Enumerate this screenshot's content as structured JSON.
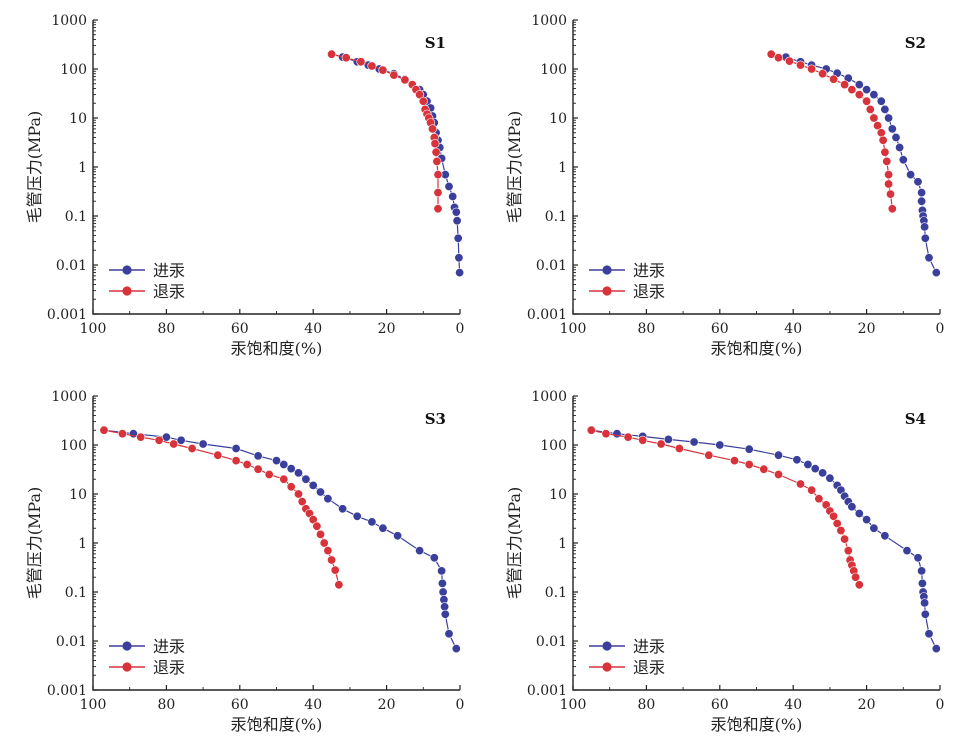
{
  "colors": {
    "intrusion": "#3b3f9c",
    "withdrawal": "#d8323a",
    "axis": "#222222"
  },
  "chart_data": [
    {
      "type": "scatter",
      "panel_label": "S1",
      "xlabel": "汞饱和度(%)",
      "ylabel": "毛管压力(MPa)",
      "xlim": [
        100,
        0
      ],
      "ylim": [
        0.001,
        1000
      ],
      "yscale": "log",
      "x_ticks": [
        "100",
        "80",
        "60",
        "40",
        "20",
        "0"
      ],
      "y_ticks": [
        "0.001",
        "0.01",
        "0.1",
        "1",
        "10",
        "100",
        "1000"
      ],
      "legend_position": "bottom-left",
      "series": [
        {
          "name": "进汞",
          "color": "#3b3f9c",
          "x": [
            35,
            32,
            28,
            25,
            22,
            18,
            15,
            13,
            11,
            10,
            9,
            8,
            7.5,
            7,
            6.5,
            6,
            5.5,
            5,
            4,
            3,
            2,
            1.5,
            1,
            0.8,
            0.5,
            0.3,
            0.1
          ],
          "y": [
            200,
            175,
            140,
            120,
            100,
            80,
            62,
            48,
            38,
            30,
            22,
            16,
            11,
            8,
            5,
            3.5,
            2.5,
            1.5,
            0.7,
            0.4,
            0.25,
            0.15,
            0.12,
            0.08,
            0.035,
            0.014,
            0.007
          ]
        },
        {
          "name": "退汞",
          "color": "#d8323a",
          "x": [
            35,
            31,
            27,
            24,
            21,
            18,
            15,
            13,
            12,
            11,
            10,
            9.5,
            9,
            8.5,
            8,
            7.5,
            7,
            6.8,
            6.5,
            6.3,
            6,
            6,
            6
          ],
          "y": [
            200,
            170,
            140,
            115,
            95,
            75,
            60,
            48,
            38,
            30,
            22,
            15,
            12,
            10,
            8,
            6,
            4,
            3,
            2,
            1.3,
            0.7,
            0.3,
            0.14
          ]
        }
      ]
    },
    {
      "type": "scatter",
      "panel_label": "S2",
      "xlabel": "汞饱和度(%)",
      "ylabel": "毛管压力(MPa)",
      "xlim": [
        100,
        0
      ],
      "ylim": [
        0.001,
        1000
      ],
      "yscale": "log",
      "x_ticks": [
        "100",
        "80",
        "60",
        "40",
        "20",
        "0"
      ],
      "y_ticks": [
        "0.001",
        "0.01",
        "0.1",
        "1",
        "10",
        "100",
        "1000"
      ],
      "legend_position": "bottom-left",
      "series": [
        {
          "name": "进汞",
          "color": "#3b3f9c",
          "x": [
            46,
            42,
            38,
            35,
            31,
            28,
            25,
            22,
            20,
            18,
            16,
            15,
            14,
            13,
            12,
            11,
            10,
            8,
            6,
            5,
            5,
            4.8,
            4.6,
            4.4,
            4.2,
            4,
            3,
            1
          ],
          "y": [
            200,
            175,
            140,
            120,
            100,
            82,
            65,
            48,
            38,
            30,
            22,
            15,
            10,
            6,
            4,
            2.5,
            1.4,
            0.7,
            0.5,
            0.3,
            0.2,
            0.13,
            0.1,
            0.08,
            0.06,
            0.035,
            0.014,
            0.007
          ]
        },
        {
          "name": "退汞",
          "color": "#d8323a",
          "x": [
            46,
            44,
            41,
            38,
            35,
            32,
            29,
            26,
            24,
            22,
            20,
            19,
            18,
            17,
            16,
            15.5,
            15,
            14.5,
            14,
            14,
            13.5,
            13
          ],
          "y": [
            200,
            170,
            145,
            120,
            100,
            80,
            62,
            48,
            38,
            30,
            22,
            15,
            10,
            7,
            5,
            3.5,
            2,
            1.3,
            0.7,
            0.45,
            0.28,
            0.14
          ]
        }
      ]
    },
    {
      "type": "scatter",
      "panel_label": "S3",
      "xlabel": "汞饱和度(%)",
      "ylabel": "毛管压力(MPa)",
      "xlim": [
        100,
        0
      ],
      "ylim": [
        0.001,
        1000
      ],
      "yscale": "log",
      "x_ticks": [
        "100",
        "80",
        "60",
        "40",
        "20",
        "0"
      ],
      "y_ticks": [
        "0.001",
        "0.01",
        "0.1",
        "1",
        "10",
        "100",
        "1000"
      ],
      "legend_position": "bottom-left",
      "series": [
        {
          "name": "进汞",
          "color": "#3b3f9c",
          "x": [
            97,
            89,
            80,
            76,
            70,
            61,
            55,
            50,
            48,
            46,
            44,
            42,
            40,
            38,
            36,
            32,
            28,
            24,
            21,
            17,
            11,
            7,
            5,
            4.8,
            4.6,
            4.4,
            4.2,
            4,
            3,
            1
          ],
          "y": [
            200,
            170,
            145,
            125,
            105,
            85,
            60,
            48,
            40,
            33,
            27,
            20,
            15,
            11,
            8,
            5,
            3.5,
            2.7,
            2,
            1.4,
            0.7,
            0.5,
            0.27,
            0.15,
            0.1,
            0.07,
            0.05,
            0.035,
            0.014,
            0.007
          ]
        },
        {
          "name": "退汞",
          "color": "#d8323a",
          "x": [
            97,
            92,
            87,
            82,
            78,
            73,
            66,
            61,
            58,
            55,
            52,
            48,
            46,
            44,
            43,
            42,
            41,
            40,
            39,
            38,
            37,
            36,
            35,
            34,
            33
          ],
          "y": [
            200,
            170,
            145,
            125,
            105,
            85,
            62,
            48,
            40,
            32,
            25,
            20,
            14,
            10,
            7,
            5,
            4,
            3,
            2.2,
            1.5,
            1,
            0.7,
            0.45,
            0.28,
            0.14
          ]
        }
      ]
    },
    {
      "type": "scatter",
      "panel_label": "S4",
      "xlabel": "汞饱和度(%)",
      "ylabel": "毛管压力(MPa)",
      "xlim": [
        100,
        0
      ],
      "ylim": [
        0.001,
        1000
      ],
      "yscale": "log",
      "x_ticks": [
        "100",
        "80",
        "60",
        "40",
        "20",
        "0"
      ],
      "y_ticks": [
        "0.001",
        "0.01",
        "0.1",
        "1",
        "10",
        "100",
        "1000"
      ],
      "legend_position": "bottom-left",
      "series": [
        {
          "name": "进汞",
          "color": "#3b3f9c",
          "x": [
            95,
            88,
            81,
            74,
            67,
            60,
            52,
            44,
            39,
            36,
            34,
            32,
            30,
            28,
            27,
            26,
            25,
            24,
            22,
            20,
            18,
            15,
            9,
            6,
            5,
            4.8,
            4.6,
            4.4,
            4.2,
            4,
            3,
            1
          ],
          "y": [
            200,
            170,
            150,
            130,
            115,
            100,
            82,
            62,
            50,
            40,
            33,
            27,
            21,
            15,
            12,
            9,
            7,
            5.5,
            4,
            3,
            2,
            1.4,
            0.7,
            0.5,
            0.27,
            0.15,
            0.1,
            0.08,
            0.06,
            0.035,
            0.014,
            0.007
          ]
        },
        {
          "name": "退汞",
          "color": "#d8323a",
          "x": [
            95,
            91,
            85,
            81,
            76,
            71,
            63,
            56,
            52,
            48,
            44,
            38,
            35,
            33,
            31,
            30,
            29,
            28,
            27,
            26,
            25,
            24.5,
            24,
            23.5,
            23,
            22
          ],
          "y": [
            200,
            170,
            145,
            125,
            105,
            85,
            62,
            48,
            40,
            32,
            25,
            16,
            12,
            8,
            6,
            4.5,
            3.5,
            2.5,
            1.8,
            1.2,
            0.7,
            0.45,
            0.35,
            0.27,
            0.2,
            0.14
          ]
        }
      ]
    }
  ]
}
